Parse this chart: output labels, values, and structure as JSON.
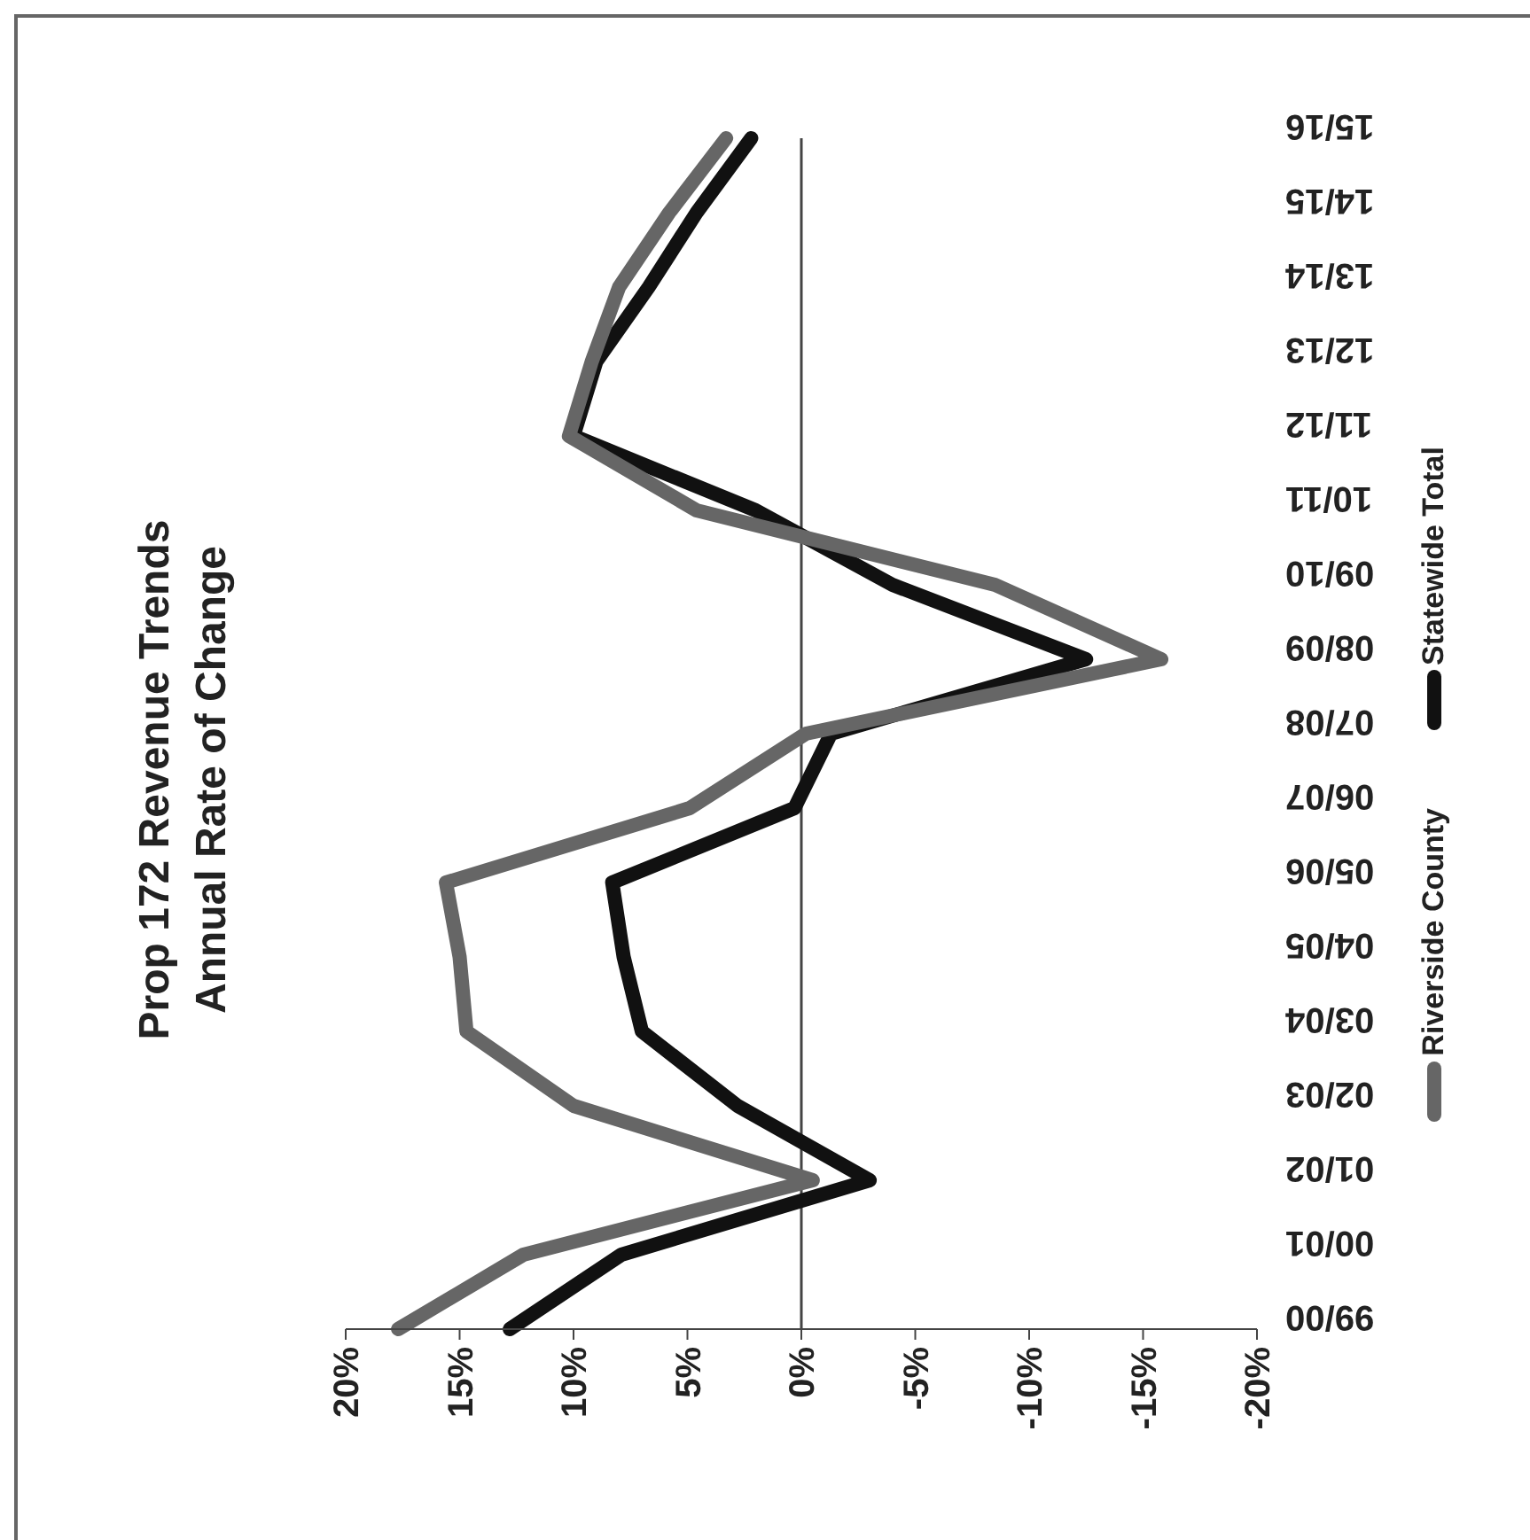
{
  "chart_data": {
    "type": "line",
    "title": "Prop 172 Revenue Trends",
    "subtitle": "Annual Rate of Change",
    "orientation": "horizontal",
    "categories": [
      "15/16",
      "14/15",
      "13/14",
      "12/13",
      "11/12",
      "10/11",
      "09/10",
      "08/09",
      "07/08",
      "06/07",
      "05/06",
      "04/05",
      "03/04",
      "02/03",
      "01/02",
      "00/01",
      "99/00"
    ],
    "series": [
      {
        "name": "Statewide Total",
        "color": "#111111",
        "values": [
          2.2,
          4.6,
          6.7,
          9,
          10,
          2,
          -4,
          -12.5,
          -1.3,
          0.3,
          8.3,
          7.8,
          7,
          2.8,
          -3,
          7.9,
          12.8
        ]
      },
      {
        "name": "Riverside County",
        "color": "#666666",
        "values": [
          3.3,
          5.8,
          8,
          9.2,
          10.2,
          4.6,
          -8.5,
          -15.8,
          -0.2,
          4.9,
          15.6,
          15,
          14.7,
          10,
          -0.5,
          12.2,
          17.7
        ]
      }
    ],
    "xlim": [
      20,
      -20
    ],
    "xticks": [
      {
        "value": 20,
        "label": "20%"
      },
      {
        "value": 15,
        "label": "15%"
      },
      {
        "value": 10,
        "label": "10%"
      },
      {
        "value": 5,
        "label": "5%"
      },
      {
        "value": 0,
        "label": "0%"
      },
      {
        "value": -5,
        "label": "-5%"
      },
      {
        "value": -10,
        "label": "-10%"
      },
      {
        "value": -15,
        "label": "-15%"
      },
      {
        "value": -20,
        "label": "-20%"
      }
    ],
    "legend": "right"
  }
}
